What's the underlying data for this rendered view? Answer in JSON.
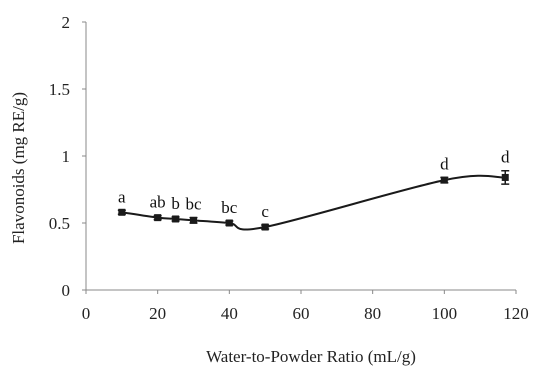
{
  "chart_data": {
    "type": "line",
    "title": "",
    "xlabel": "Water-to-Powder Ratio (mL/g)",
    "ylabel": "Flavonoids (mg RE/g)",
    "xlim": [
      0,
      120
    ],
    "ylim": [
      0,
      2
    ],
    "xticks": [
      "0",
      "20",
      "40",
      "60",
      "80",
      "100",
      "120"
    ],
    "yticks": [
      "0",
      "0.5",
      "1",
      "1.5",
      "2"
    ],
    "grid": false,
    "legend": "none",
    "series": [
      {
        "x": [
          10,
          20,
          25,
          30,
          40,
          50,
          100,
          117
        ],
        "y": [
          0.58,
          0.54,
          0.53,
          0.52,
          0.5,
          0.47,
          0.82,
          0.84
        ],
        "error": [
          0.015,
          0.015,
          0.015,
          0.02,
          0.015,
          0.015,
          0.02,
          0.05
        ],
        "labels": [
          "a",
          "ab",
          "b",
          "bc",
          "bc",
          "c",
          "d",
          "d"
        ]
      }
    ],
    "line_color": "#1a1a1a",
    "axis_color": "#888888"
  }
}
